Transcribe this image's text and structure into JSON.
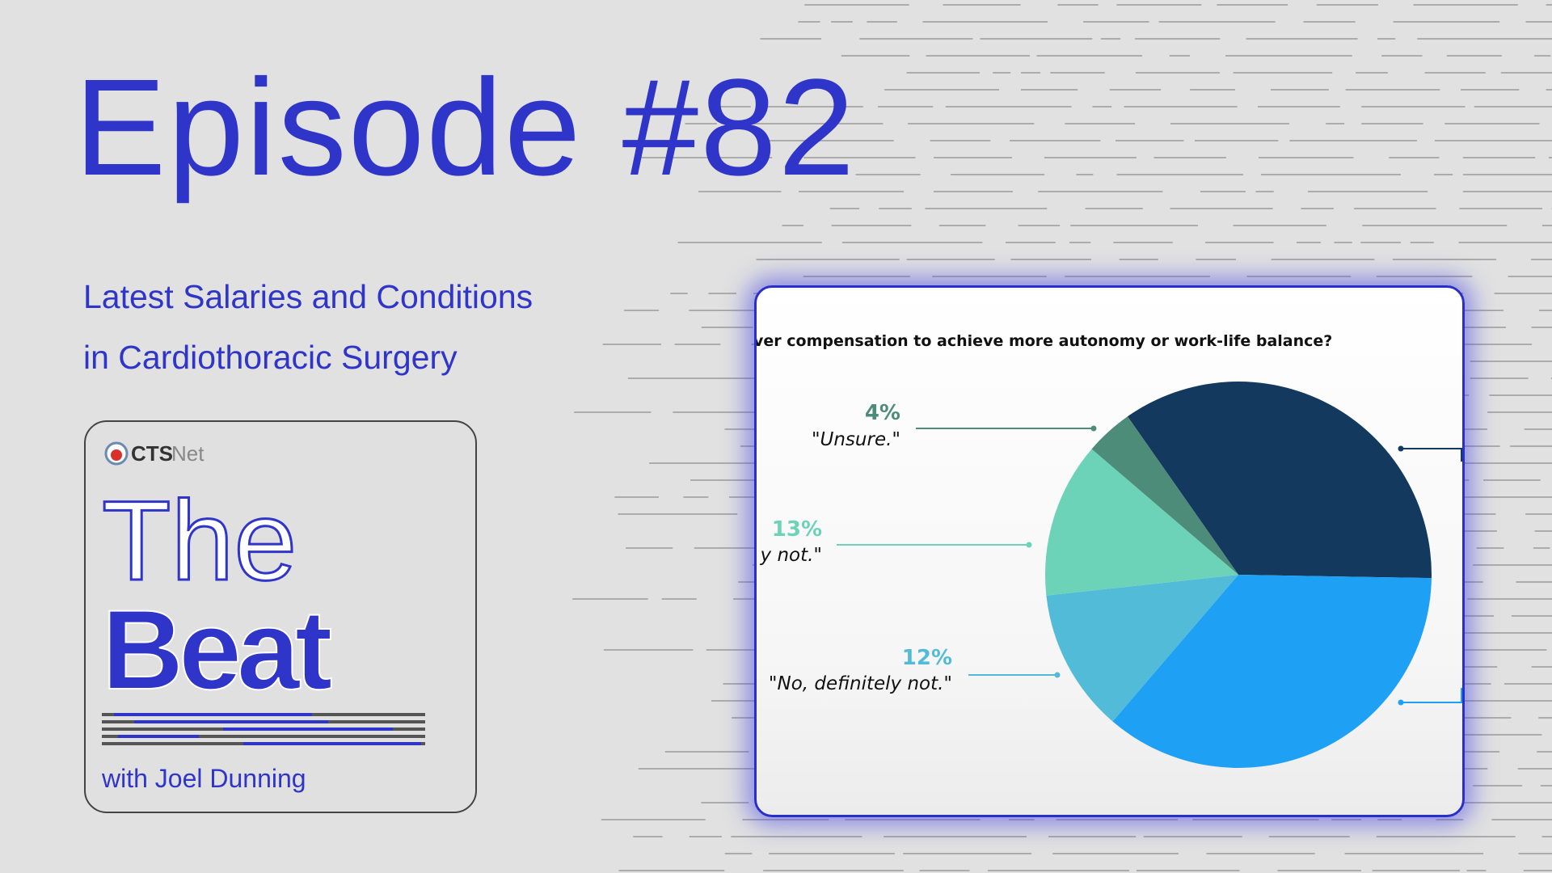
{
  "episode": "Episode #82",
  "subtitle_lines": [
    "Latest Salaries and Conditions",
    "in Cardiothoracic Surgery"
  ],
  "podcast": {
    "brand_bold": "CTS",
    "brand_light": "Net",
    "title_top": "The",
    "title_bottom": "Beat",
    "host": "with Joel Dunning"
  },
  "chart_data": {
    "type": "pie",
    "title": "ver compensation to achieve more autonomy or work-life balance?",
    "categories": [
      null,
      null,
      "\"No, definitely not.\"",
      "y not.\"",
      "\"Unsure.\""
    ],
    "values": [
      35,
      36,
      12,
      13,
      4
    ],
    "value_labels": [
      null,
      null,
      "12%",
      "13%",
      "4%"
    ],
    "colors": [
      "#133a5e",
      "#1ea1f5",
      "#52bbd8",
      "#6dd3b8",
      "#4e8c7a"
    ]
  }
}
